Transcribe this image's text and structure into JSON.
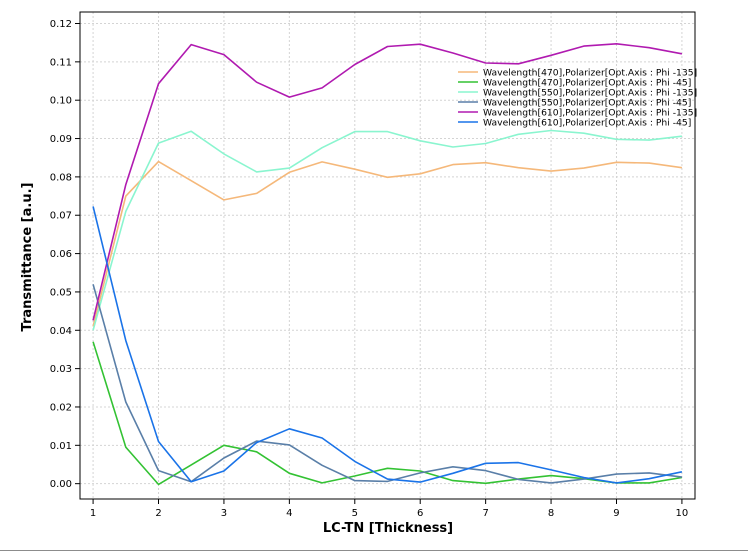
{
  "chart_data": {
    "type": "line",
    "title": "",
    "xlabel": "LC-TN [Thickness]",
    "ylabel": "Transmittance [a.u.]",
    "xlim": [
      0.8,
      10.2
    ],
    "ylim": [
      -0.004,
      0.123
    ],
    "xticks": [
      1,
      2,
      3,
      4,
      5,
      6,
      7,
      8,
      9,
      10
    ],
    "yticks": [
      0.0,
      0.01,
      0.02,
      0.03,
      0.04,
      0.05,
      0.06,
      0.07,
      0.08,
      0.09,
      0.1,
      0.11,
      0.12
    ],
    "ytick_labels": [
      "0.00",
      "0.01",
      "0.02",
      "0.03",
      "0.04",
      "0.05",
      "0.06",
      "0.07",
      "0.08",
      "0.09",
      "0.10",
      "0.11",
      "0.12"
    ],
    "grid": true,
    "legend_position": "top-right",
    "x": [
      1,
      1.5,
      2,
      2.5,
      3,
      3.5,
      4,
      4.5,
      5,
      5.5,
      6,
      6.5,
      7,
      7.5,
      8,
      8.5,
      9,
      9.5,
      10
    ],
    "series": [
      {
        "name": "Wavelength[470],Polarizer[Opt.Axis : Phi -135]",
        "color": "#f5b87a",
        "values": [
          0.041,
          0.075,
          0.084,
          0.079,
          0.074,
          0.0757,
          0.0812,
          0.0839,
          0.082,
          0.0799,
          0.0808,
          0.0832,
          0.0837,
          0.0824,
          0.0815,
          0.0823,
          0.0838,
          0.0836,
          0.0824
        ]
      },
      {
        "name": "Wavelength[470],Polarizer[Opt.Axis : Phi -45]",
        "color": "#33c233",
        "values": [
          0.037,
          0.0095,
          -0.0002,
          0.0049,
          0.01,
          0.0083,
          0.0027,
          0.0002,
          0.002,
          0.004,
          0.0033,
          0.0008,
          0.0001,
          0.0012,
          0.0021,
          0.0013,
          0.0002,
          0.0002,
          0.0016
        ]
      },
      {
        "name": "Wavelength[550],Polarizer[Opt.Axis : Phi -135]",
        "color": "#8af5cf",
        "values": [
          0.04,
          0.071,
          0.0888,
          0.0919,
          0.086,
          0.0813,
          0.0823,
          0.0876,
          0.0918,
          0.0918,
          0.0894,
          0.0878,
          0.0887,
          0.0911,
          0.0921,
          0.0914,
          0.0898,
          0.0896,
          0.0906
        ]
      },
      {
        "name": "Wavelength[550],Polarizer[Opt.Axis : Phi -45]",
        "color": "#5a7fa8",
        "values": [
          0.052,
          0.0213,
          0.0034,
          0.0005,
          0.0067,
          0.0111,
          0.0101,
          0.0048,
          0.0008,
          0.0006,
          0.0028,
          0.0044,
          0.0034,
          0.0011,
          0.0002,
          0.0012,
          0.0025,
          0.0028,
          0.0017
        ]
      },
      {
        "name": "Wavelength[610],Polarizer[Opt.Axis : Phi -135]",
        "color": "#b01ab0",
        "values": [
          0.0426,
          0.078,
          0.1043,
          0.1145,
          0.1119,
          0.1047,
          0.1008,
          0.1032,
          0.1093,
          0.114,
          0.1146,
          0.1123,
          0.1097,
          0.1095,
          0.1117,
          0.1141,
          0.1147,
          0.1137,
          0.1121
        ]
      },
      {
        "name": "Wavelength[610],Polarizer[Opt.Axis : Phi -45]",
        "color": "#1a73e8",
        "values": [
          0.0723,
          0.0373,
          0.011,
          0.0005,
          0.0033,
          0.0107,
          0.0143,
          0.0119,
          0.0058,
          0.0012,
          0.0004,
          0.0027,
          0.0053,
          0.0055,
          0.0036,
          0.0016,
          0.0002,
          0.0013,
          0.0031
        ]
      }
    ]
  }
}
